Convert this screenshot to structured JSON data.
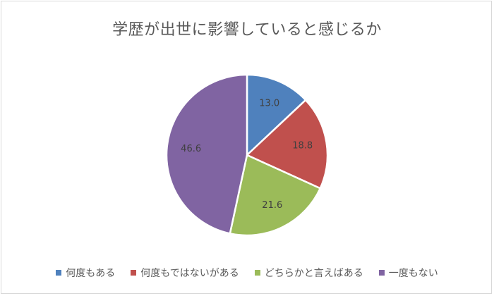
{
  "chart_data": {
    "type": "pie",
    "title": "学歴が出世に影響していると感じるか",
    "categories": [
      "何度もある",
      "何度もではないがある",
      "どちらかと言えばある",
      "一度もない"
    ],
    "values": [
      13.0,
      18.8,
      21.6,
      46.6
    ],
    "value_labels": [
      "13.0",
      "18.8",
      "21.6",
      "46.6"
    ],
    "colors": [
      "#4f81bd",
      "#c0504d",
      "#9bbb59",
      "#8064a2"
    ],
    "start": "12 o'clock, clockwise",
    "legend": "bottom"
  }
}
